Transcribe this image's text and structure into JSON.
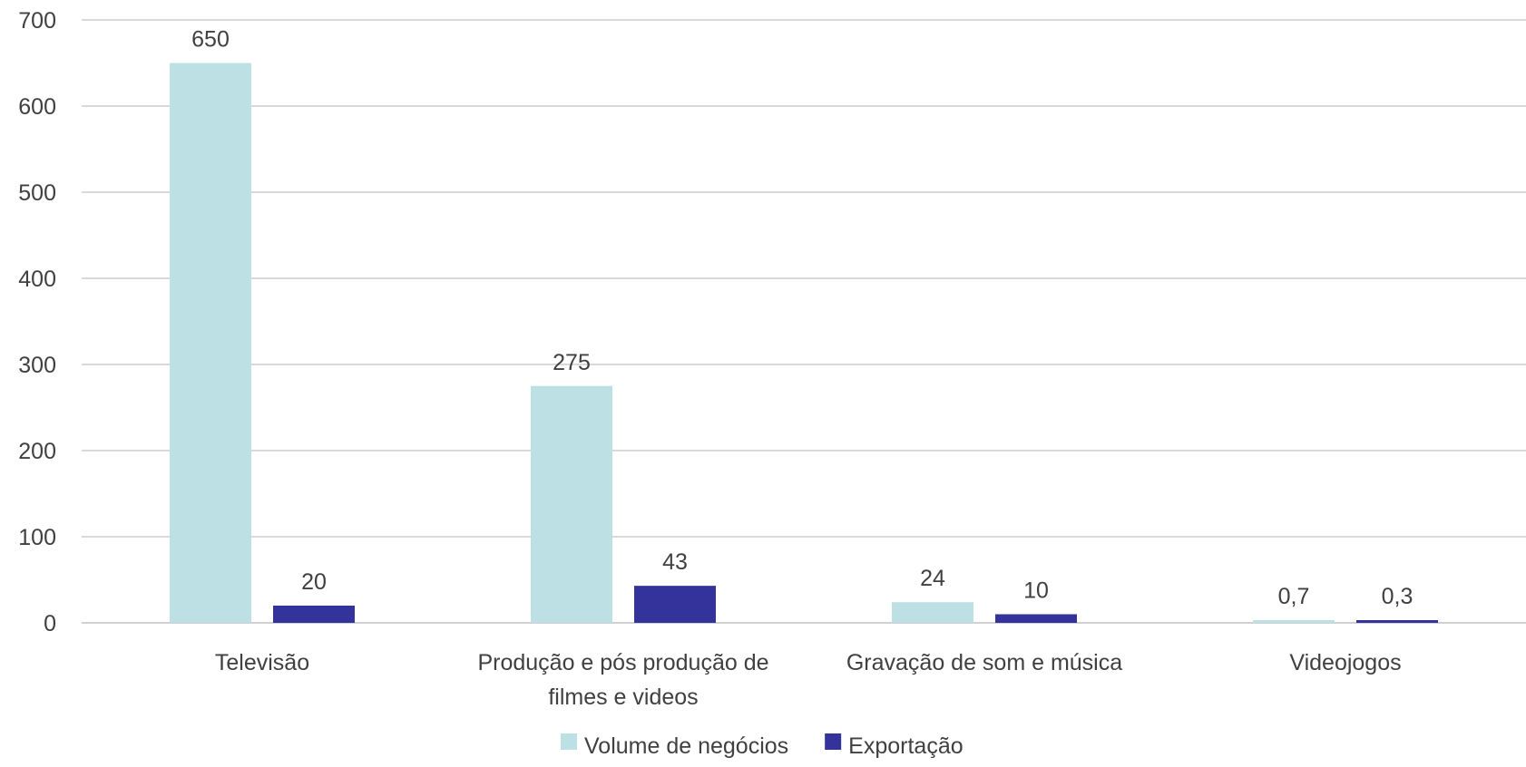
{
  "chart_data": {
    "type": "bar",
    "categories": [
      [
        "Televisão"
      ],
      [
        "Produção e pós produção de",
        "filmes e videos"
      ],
      [
        "Gravação de som e música"
      ],
      [
        "Videojogos"
      ]
    ],
    "series": [
      {
        "name": "Volume de negócios",
        "color": "#bce0e3",
        "values": [
          650,
          275,
          24,
          0.7
        ],
        "labels": [
          "650",
          "275",
          "24",
          "0,7"
        ]
      },
      {
        "name": "Exportação",
        "color": "#33339b",
        "values": [
          20,
          43,
          10,
          0.3
        ],
        "labels": [
          "20",
          "43",
          "10",
          "0,3"
        ]
      }
    ],
    "ylim": [
      0,
      700
    ],
    "yticks": [
      0,
      100,
      200,
      300,
      400,
      500,
      600,
      700
    ],
    "grid": true,
    "legend_position": "bottom-center",
    "title": "",
    "xlabel": "",
    "ylabel": ""
  }
}
